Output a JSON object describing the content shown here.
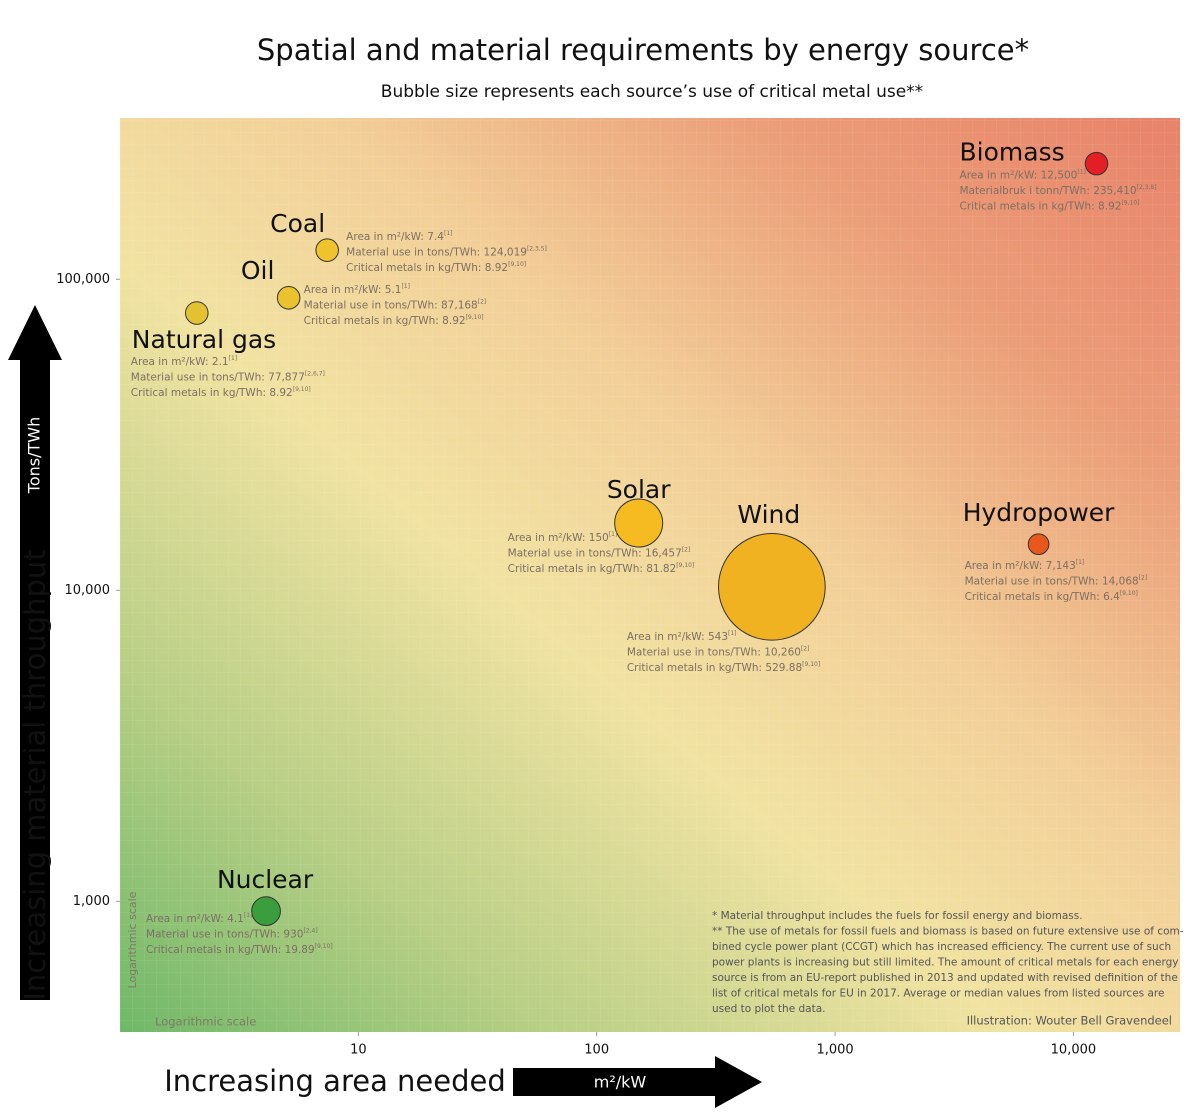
{
  "chart_data": {
    "type": "bubble",
    "title": "Spatial and material requirements by energy source*",
    "subtitle": "Bubble size represents each source’s use of critical metal use**",
    "x_label": "Increasing area needed",
    "x_unit": "m²/kW",
    "y_label": "Increasing material throughput",
    "y_unit": "Tons/TWh",
    "x_scale_note": "Logarithmic scale",
    "y_scale_note": "Logarithmic scale",
    "xlog": true,
    "ylog": true,
    "xlim": [
      1,
      28000
    ],
    "ylim": [
      380,
      330000
    ],
    "xticks": [
      10,
      100,
      {
        "value": 1000,
        "label": "1,000"
      },
      {
        "value": 10000,
        "label": "10,000"
      }
    ],
    "yticks": [
      {
        "value": 1000,
        "label": "1,000"
      },
      {
        "value": 10000,
        "label": "10,000"
      },
      {
        "value": 100000,
        "label": "100,000"
      }
    ],
    "series": [
      {
        "name": "Biomass",
        "color": "#e31e24",
        "x": 12500,
        "y": 235410,
        "size": 8.92,
        "notes": [
          {
            "text": "Area in m²/kW: 12,500",
            "ref": "[1]"
          },
          {
            "text": "Materialbruk i tonn/TWh: 235,410",
            "ref": "[2,3,8]"
          },
          {
            "text": "Critical metals in kg/TWh: 8.92",
            "ref": "[9,10]"
          }
        ]
      },
      {
        "name": "Coal",
        "color": "#f0c22c",
        "x": 7.4,
        "y": 124019,
        "size": 8.92,
        "notes": [
          {
            "text": "Area in m²/kW: 7.4",
            "ref": "[1]"
          },
          {
            "text": "Material use in tons/TWh: 124,019",
            "ref": "[2,3,5]"
          },
          {
            "text": "Critical metals in kg/TWh: 8.92",
            "ref": "[9,10]"
          }
        ]
      },
      {
        "name": "Oil",
        "color": "#e9c22e",
        "x": 5.1,
        "y": 87168,
        "size": 8.92,
        "notes": [
          {
            "text": "Area in m²/kW: 5.1",
            "ref": "[1]"
          },
          {
            "text": "Material use in tons/TWh: 87,168",
            "ref": "[2]"
          },
          {
            "text": "Critical metals in kg/TWh: 8.92",
            "ref": "[9,10]"
          }
        ]
      },
      {
        "name": "Natural gas",
        "color": "#e3c232",
        "x": 2.1,
        "y": 77877,
        "size": 8.92,
        "notes": [
          {
            "text": "Area in m²/kW: 2.1",
            "ref": "[1]"
          },
          {
            "text": "Material use in tons/TWh: 77,877",
            "ref": "[2,6,7]"
          },
          {
            "text": "Critical metals in kg/TWh: 8.92",
            "ref": "[9,10]"
          }
        ]
      },
      {
        "name": "Solar",
        "color": "#f5bb20",
        "x": 150,
        "y": 16457,
        "size": 81.82,
        "notes": [
          {
            "text": "Area in m²/kW: 150",
            "ref": "[1]"
          },
          {
            "text": "Material use in tons/TWh: 16,457",
            "ref": "[2]"
          },
          {
            "text": "Critical metals in kg/TWh: 81.82",
            "ref": "[9,10]"
          }
        ]
      },
      {
        "name": "Wind",
        "color": "#f1b222",
        "x": 543,
        "y": 10260,
        "size": 529.88,
        "notes": [
          {
            "text": "Area in m²/kW: 543",
            "ref": "[1]"
          },
          {
            "text": "Material use in tons/TWh: 10,260",
            "ref": "[2]"
          },
          {
            "text": "Critical metals in kg/TWh: 529.88",
            "ref": "[9,10]"
          }
        ]
      },
      {
        "name": "Hydropower",
        "color": "#e8571c",
        "x": 7143,
        "y": 14068,
        "size": 6.4,
        "notes": [
          {
            "text": "Area in m²/kW: 7,143",
            "ref": "[1]"
          },
          {
            "text": "Material use in tons/TWh: 14,068",
            "ref": "[2]"
          },
          {
            "text": "Critical metals in kg/TWh: 6.4",
            "ref": "[9,10]"
          }
        ]
      },
      {
        "name": "Nuclear",
        "color": "#3a9e3c",
        "x": 4.1,
        "y": 930,
        "size": 19.89,
        "notes": [
          {
            "text": "Area in m²/kW: 4.1",
            "ref": "[1]"
          },
          {
            "text": "Material use in tons/TWh: 930",
            "ref": "[2,4]"
          },
          {
            "text": "Critical metals in kg/TWh: 19.89",
            "ref": "[9,10]"
          }
        ]
      }
    ],
    "footnotes": [
      "* Material throughput includes the fuels for fossil energy and biomass.",
      "** The use of metals for fossil fuels and biomass is based on future extensive use of com-",
      "bined cycle power plant (CCGT) which has increased efficiency. The current use of such",
      "power plants is increasing but still limited. The amount of critical metals for each energy",
      "source is from an EU-report published in 2013 and updated with revised definition of the",
      "list of critical metals for EU in 2017. Average or median values from listed sources are",
      "used to plot the data."
    ],
    "credit": "Illustration: Wouter Bell Gravendeel"
  }
}
